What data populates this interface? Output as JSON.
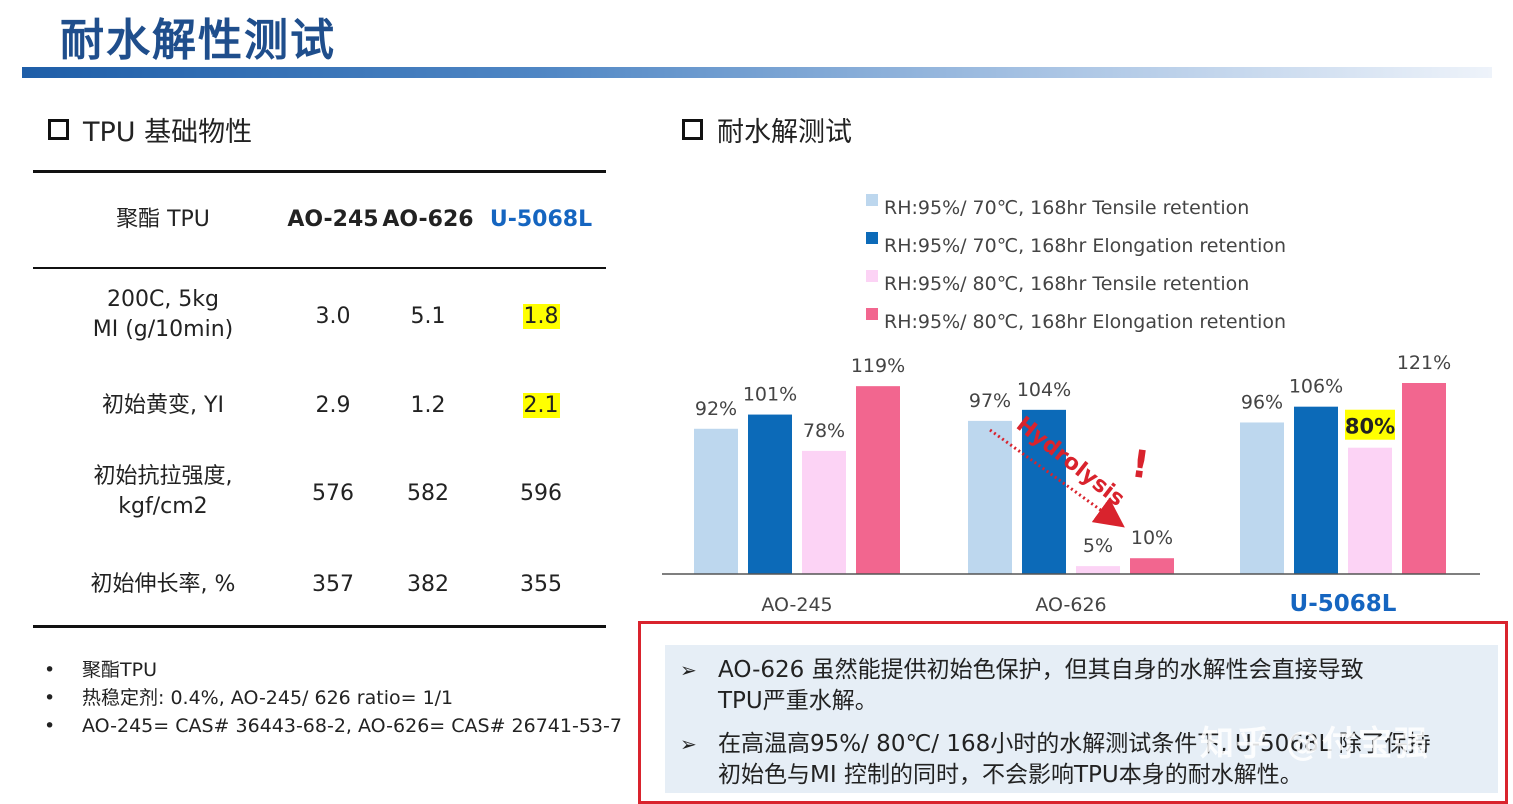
{
  "slide_title": "耐水解性测试",
  "left_section": {
    "heading": "TPU 基础物性",
    "table": {
      "headers": [
        "聚酯 TPU",
        "AO-245",
        "AO-626",
        "U-5068L"
      ],
      "rows": [
        {
          "label": [
            "200C, 5kg",
            "MI (g/10min)"
          ],
          "values": [
            "3.0",
            "5.1",
            "1.8"
          ]
        },
        {
          "label": [
            "初始黄变, YI"
          ],
          "values": [
            "2.9",
            "1.2",
            "2.1"
          ]
        },
        {
          "label": [
            "初始抗拉强度,",
            "kgf/cm2"
          ],
          "values": [
            "576",
            "582",
            "596"
          ]
        },
        {
          "label": [
            "初始伸长率, %"
          ],
          "values": [
            "357",
            "382",
            "355"
          ]
        }
      ]
    },
    "notes": [
      "聚酯TPU",
      "热稳定剂: 0.4%, AO-245/ 626 ratio= 1/1",
      "AO-245= CAS# 36443-68-2, AO-626= CAS# 26741-53-7"
    ]
  },
  "right_section": {
    "heading": "耐水解测试",
    "annotation_text": "Hydrolysis",
    "annotation_mark": "!"
  },
  "chart_data": {
    "type": "bar",
    "categories": [
      "AO-245",
      "AO-626",
      "U-5068L"
    ],
    "series": [
      {
        "name": "RH:95%/ 70℃, 168hr Tensile retention",
        "values": [
          92,
          97,
          96
        ],
        "labels": [
          "92%",
          "97%",
          "96%"
        ],
        "color": "#bdd7ee"
      },
      {
        "name": "RH:95%/ 70℃, 168hr Elongation retention",
        "values": [
          101,
          104,
          106
        ],
        "labels": [
          "101%",
          "104%",
          "106%"
        ],
        "color": "#0c6ab8"
      },
      {
        "name": "RH:95%/ 80℃, 168hr Tensile retention",
        "values": [
          78,
          5,
          80
        ],
        "labels": [
          "78%",
          "5%",
          "80%"
        ],
        "color": "#fcd3f5"
      },
      {
        "name": "RH:95%/ 80℃, 168hr Elongation retention",
        "values": [
          119,
          10,
          121
        ],
        "labels": [
          "119%",
          "10%",
          "121%"
        ],
        "color": "#f2668f"
      }
    ],
    "highlighted_label": "80%",
    "highlighted_category": "U-5068L",
    "legend_position": "top",
    "ylim": [
      0,
      121
    ],
    "grid": false
  },
  "callout": {
    "bullets": [
      [
        "AO-626 虽然能提供初始色保护，但其自身的水解性会直接导致",
        "TPU严重水解。"
      ],
      [
        "在高温高95%/ 80℃/ 168小时的水解测试条件下, U-5068L 除了保持",
        "初始色与MI 控制的同时，不会影响TPU本身的耐水解性。"
      ]
    ]
  },
  "watermark": "知乎 @付宝强",
  "colors": {
    "title": "#1f4e8c",
    "accent_blue": "#1565c0",
    "highlight": "#ffff00",
    "callout_border": "#d9232d",
    "callout_fill": "#e6eef6"
  }
}
